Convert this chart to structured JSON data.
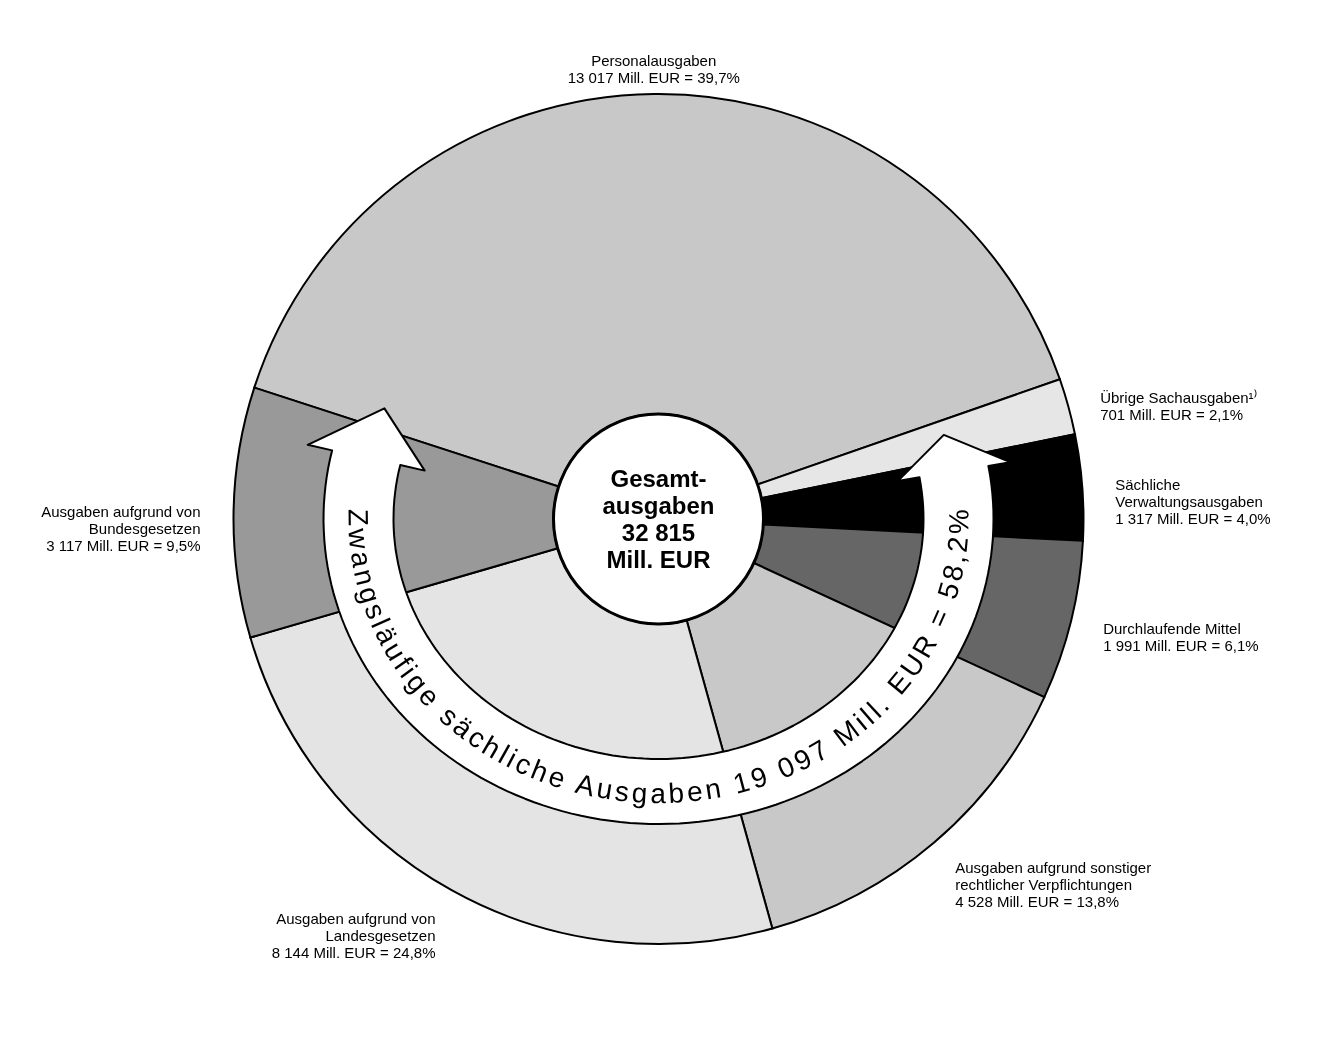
{
  "chart_data": {
    "type": "donut",
    "categories": [
      "Personalausgaben",
      "Übrige Sachausgaben¹⁾",
      "Sächliche Verwaltungsausgaben",
      "Durchlaufende Mittel",
      "Ausgaben aufgrund sonstiger rechtlicher Verpflichtungen",
      "Ausgaben aufgrund von Landesgesetzen",
      "Ausgaben aufgrund von Bundesgesetzen"
    ],
    "values": [
      13017,
      701,
      1317,
      1991,
      4528,
      8144,
      3117
    ],
    "colors": [
      "#c8c8c8",
      "#e6e6e6",
      "#000000",
      "#666666",
      "#c8c8c8",
      "#e4e4e4",
      "#999999"
    ],
    "value_labels": [
      "13 017 Mill. EUR = 39,7%",
      "701 Mill. EUR = 2,1%",
      "1 317 Mill. EUR = 4,0%",
      "1 991 Mill. EUR = 6,1%",
      "4 528 Mill. EUR = 13,8%",
      "8 144 Mill. EUR = 24,8%",
      "3 117 Mill. EUR = 9,5%"
    ],
    "annotations": [
      "Gesamt-ausgaben 32 815 Mill. EUR",
      "Zwangsläufige sächliche Ausgaben 19 097 Mill. EUR = 58,2%"
    ]
  }
}
